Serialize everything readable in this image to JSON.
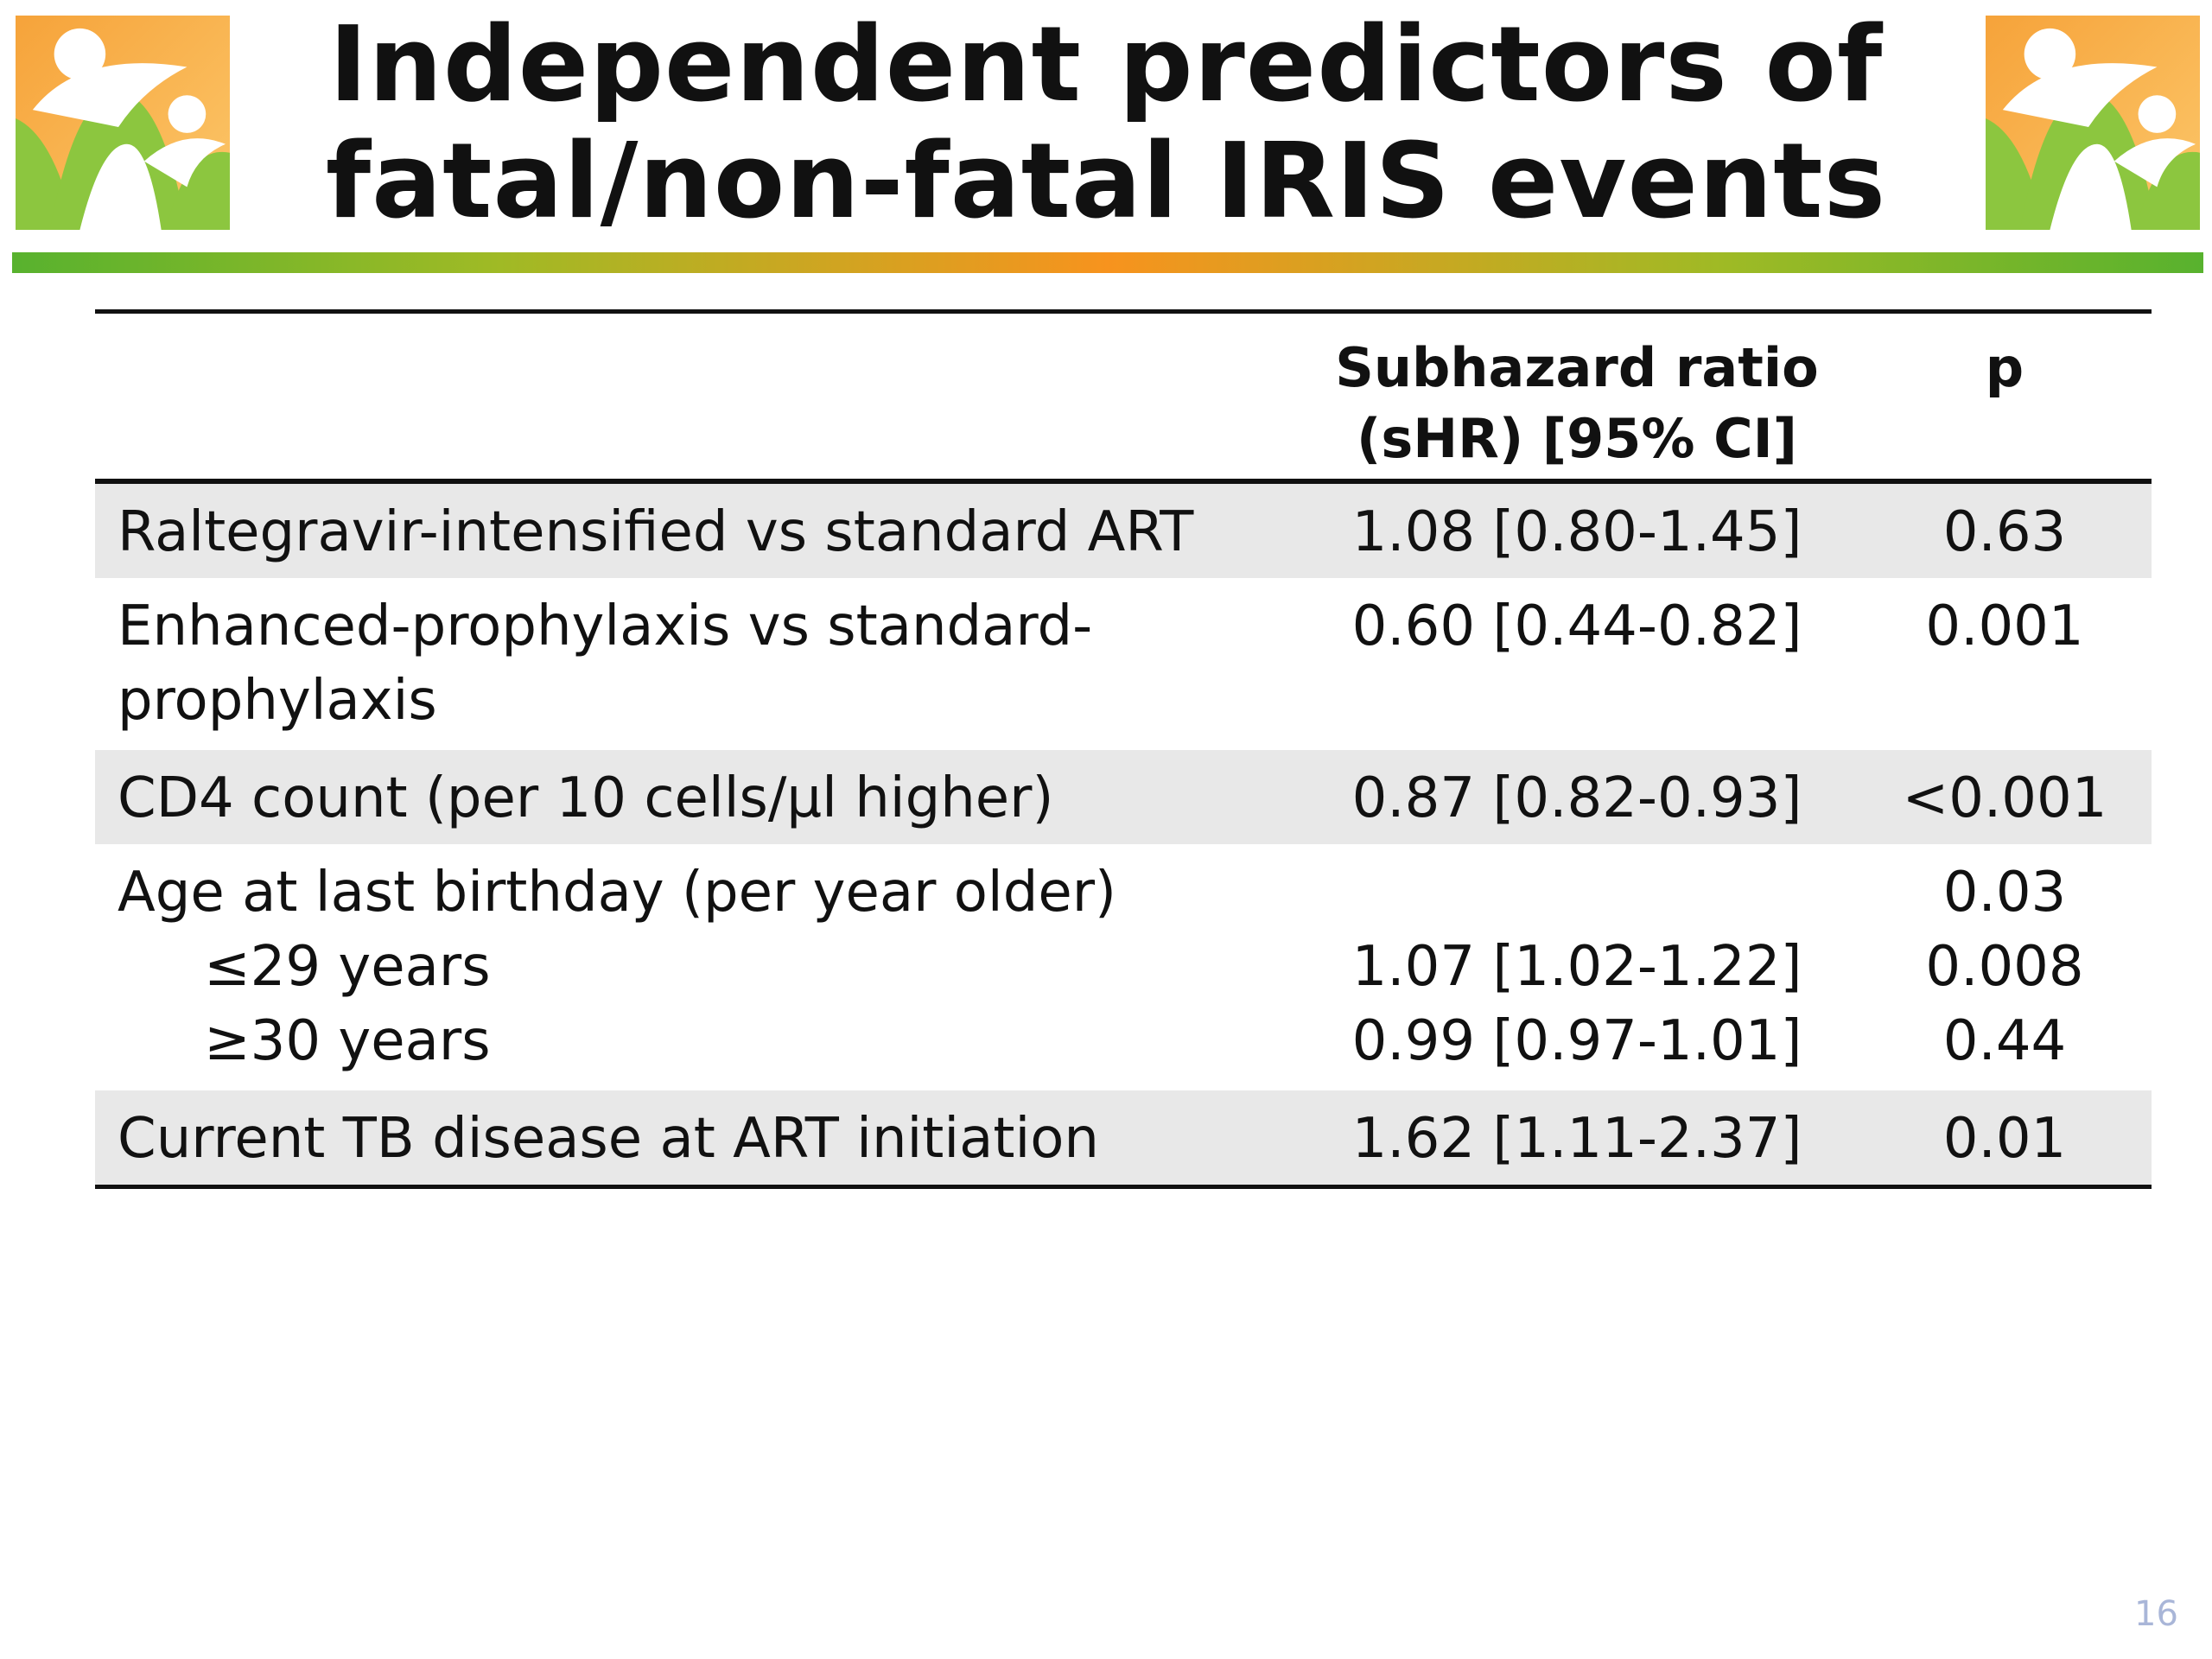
{
  "slide": {
    "title_line1": "Independent predictors of",
    "title_line2": "fatal/non-fatal IRIS events",
    "page_number": "16",
    "colors": {
      "logo_orange": "#f7931e",
      "logo_green": "#8cc63f",
      "rule_green": "#58b22e",
      "rule_orange": "#f7931e",
      "row_shade": "#e8e8e8",
      "page_number": "#a9b6d8"
    }
  },
  "table": {
    "header": {
      "col2_line1": "Subhazard ratio",
      "col2_line2": "(sHR) [95% CI]",
      "col3": "p"
    },
    "rows": [
      {
        "label": "Raltegravir-intensified vs standard ART",
        "shr": "1.08 [0.80-1.45]",
        "p": "0.63"
      },
      {
        "label_line1": "Enhanced-prophylaxis vs standard-",
        "label_line2": "prophylaxis",
        "shr": "0.60 [0.44-0.82]",
        "p": "0.001"
      },
      {
        "label": "CD4 count (per 10 cells/µl higher)",
        "shr": "0.87 [0.82-0.93]",
        "p": "<0.001"
      },
      {
        "label": "Age at last birthday (per year older)",
        "p": "0.03",
        "sub": [
          {
            "label": "≤29 years",
            "shr": "1.07 [1.02-1.22]",
            "p": "0.008"
          },
          {
            "label": "≥30 years",
            "shr": "0.99 [0.97-1.01]",
            "p": "0.44"
          }
        ]
      },
      {
        "label": "Current TB disease at ART initiation",
        "shr": "1.62 [1.11-2.37]",
        "p": "0.01"
      }
    ]
  }
}
